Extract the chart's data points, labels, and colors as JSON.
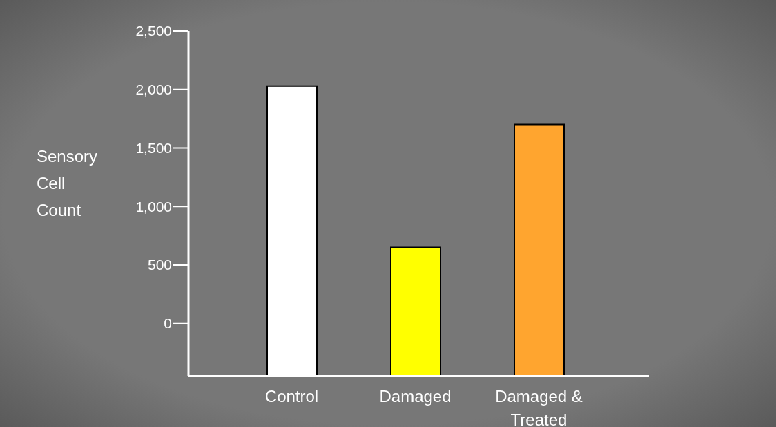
{
  "chart_data": {
    "type": "bar",
    "ylabel": "Sensory Cell Count",
    "categories": [
      "Control",
      "Damaged",
      "Damaged & Treated"
    ],
    "values": [
      2480,
      1100,
      2150
    ],
    "base": [
      -450,
      -450,
      -450
    ],
    "colors": [
      "#ffffff",
      "#ffff00",
      "#ffa52f"
    ],
    "ylim": [
      -450,
      2500
    ],
    "yticks": [
      {
        "value": 0,
        "label": "0"
      },
      {
        "value": 500,
        "label": "500"
      },
      {
        "value": 1000,
        "label": "1,000"
      },
      {
        "value": 1500,
        "label": "1,500"
      },
      {
        "value": 2000,
        "label": "2,000"
      },
      {
        "value": 2500,
        "label": "2,500"
      }
    ],
    "grid": false
  }
}
